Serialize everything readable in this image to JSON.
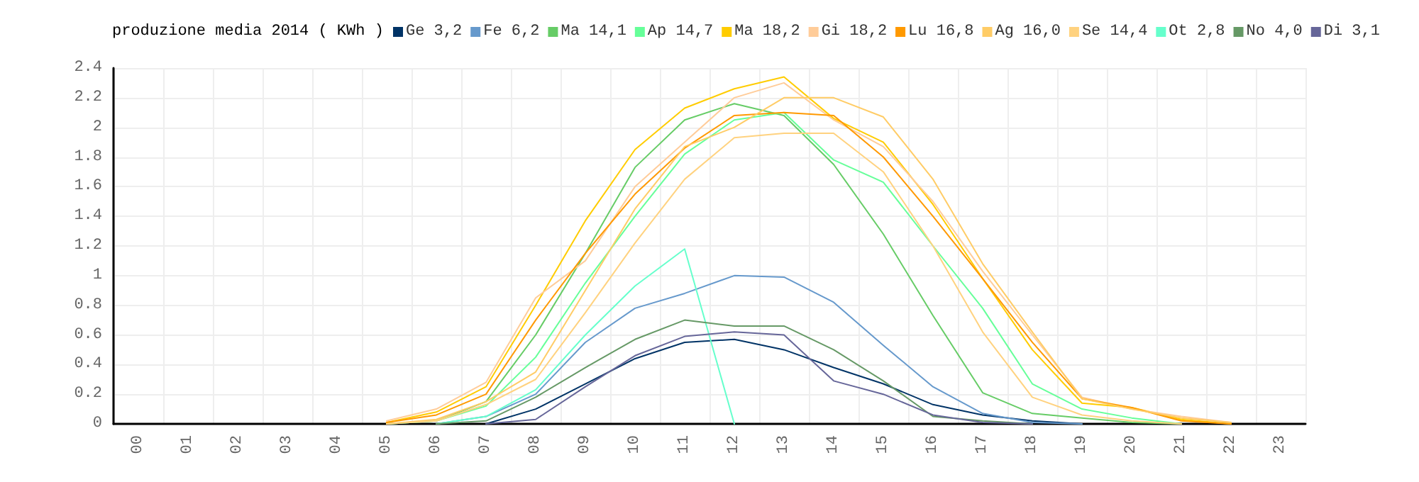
{
  "chart_data": {
    "type": "line",
    "title": "produzione media 2014 ( KWh )",
    "categories": [
      "00",
      "01",
      "02",
      "03",
      "04",
      "05",
      "06",
      "07",
      "08",
      "09",
      "10",
      "11",
      "12",
      "13",
      "14",
      "15",
      "16",
      "17",
      "18",
      "19",
      "20",
      "21",
      "22",
      "23"
    ],
    "ylim": [
      0,
      2.4
    ],
    "yticks": [
      0,
      0.2,
      0.4,
      0.6,
      0.8,
      1,
      1.2,
      1.4,
      1.6,
      1.8,
      2,
      2.2,
      2.4
    ],
    "grid": true,
    "legend": "top",
    "marker": "none",
    "line_style": "solid",
    "series": [
      {
        "name": "Ge 3,2",
        "color": "#003366",
        "values": [
          null,
          null,
          null,
          null,
          null,
          null,
          null,
          0,
          0.1,
          0.27,
          0.44,
          0.55,
          0.57,
          0.5,
          0.38,
          0.27,
          0.13,
          0.06,
          0.02,
          0,
          null,
          null,
          null,
          null
        ]
      },
      {
        "name": "Fe 6,2",
        "color": "#6699cc",
        "values": [
          null,
          null,
          null,
          null,
          null,
          null,
          0,
          0.05,
          0.2,
          0.55,
          0.78,
          0.88,
          1.0,
          0.99,
          0.82,
          0.53,
          0.25,
          0.07,
          0.01,
          0,
          null,
          null,
          null,
          null
        ]
      },
      {
        "name": "Ma 14,1",
        "color": "#66cc66",
        "values": [
          null,
          null,
          null,
          null,
          null,
          0,
          0.02,
          0.15,
          0.6,
          1.15,
          1.73,
          2.05,
          2.16,
          2.08,
          1.75,
          1.28,
          0.73,
          0.21,
          0.07,
          0.04,
          0.01,
          0,
          null,
          null
        ]
      },
      {
        "name": "Ap 14,7",
        "color": "#66ff99",
        "values": [
          null,
          null,
          null,
          null,
          null,
          0,
          0.02,
          0.12,
          0.45,
          0.95,
          1.4,
          1.82,
          2.05,
          2.1,
          1.78,
          1.63,
          1.2,
          0.78,
          0.27,
          0.1,
          0.04,
          0,
          null,
          null
        ]
      },
      {
        "name": "Ma 18,2",
        "color": "#ffcc00",
        "values": [
          null,
          null,
          null,
          null,
          null,
          0.01,
          0.08,
          0.25,
          0.8,
          1.37,
          1.85,
          2.13,
          2.26,
          2.34,
          2.06,
          1.9,
          1.48,
          0.98,
          0.5,
          0.14,
          0.11,
          0.03,
          0,
          null
        ]
      },
      {
        "name": "Gi 18,2",
        "color": "#ffcc99",
        "values": [
          null,
          null,
          null,
          null,
          null,
          0.02,
          0.1,
          0.28,
          0.85,
          1.1,
          1.6,
          1.9,
          2.2,
          2.3,
          2.05,
          1.87,
          1.5,
          1.03,
          0.6,
          0.18,
          0.1,
          0.05,
          0.01,
          null
        ]
      },
      {
        "name": "Lu 16,8",
        "color": "#ff9900",
        "values": [
          null,
          null,
          null,
          null,
          null,
          0.01,
          0.06,
          0.2,
          0.7,
          1.15,
          1.55,
          1.86,
          2.08,
          2.1,
          2.08,
          1.8,
          1.4,
          0.98,
          0.55,
          0.17,
          0.11,
          0.02,
          0,
          null
        ]
      },
      {
        "name": "Ag 16,0",
        "color": "#ffcc66",
        "values": [
          null,
          null,
          null,
          null,
          null,
          0,
          0.03,
          0.15,
          0.35,
          0.9,
          1.45,
          1.87,
          2.0,
          2.2,
          2.2,
          2.07,
          1.65,
          1.08,
          0.62,
          0.17,
          0.1,
          0.04,
          0.01,
          null
        ]
      },
      {
        "name": "Se 14,4",
        "color": "#ffd27f",
        "values": [
          null,
          null,
          null,
          null,
          null,
          0,
          0.02,
          0.13,
          0.3,
          0.75,
          1.22,
          1.65,
          1.93,
          1.96,
          1.96,
          1.7,
          1.2,
          0.62,
          0.18,
          0.06,
          0.02,
          0,
          null,
          null
        ]
      },
      {
        "name": "Ot 2,8",
        "color": "#66ffcc",
        "values": [
          null,
          null,
          null,
          null,
          null,
          null,
          0,
          0.05,
          0.23,
          0.6,
          0.93,
          1.18,
          0,
          null,
          null,
          null,
          null,
          null,
          null,
          null,
          null,
          null,
          null,
          null
        ]
      },
      {
        "name": "No 4,0",
        "color": "#669966",
        "values": [
          null,
          null,
          null,
          null,
          null,
          null,
          0,
          0.02,
          0.18,
          0.38,
          0.57,
          0.7,
          0.66,
          0.66,
          0.5,
          0.29,
          0.05,
          0.02,
          0,
          null,
          null,
          null,
          null,
          null
        ]
      },
      {
        "name": "Di 3,1",
        "color": "#666699",
        "values": [
          null,
          null,
          null,
          null,
          null,
          null,
          null,
          0,
          0.03,
          0.25,
          0.46,
          0.59,
          0.62,
          0.6,
          0.29,
          0.2,
          0.06,
          0.01,
          0,
          null,
          null,
          null,
          null,
          null
        ]
      }
    ]
  }
}
